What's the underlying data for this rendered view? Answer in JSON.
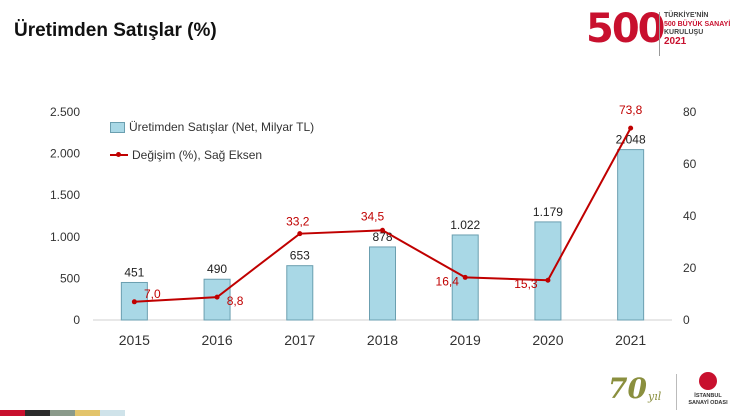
{
  "header": {
    "title": "Üretimden Satışlar (%)"
  },
  "logo_500": {
    "number": "500",
    "line1": "TÜRKİYE'NİN",
    "line2": "500 BÜYÜK SANAYİ",
    "line3": "KURULUŞU",
    "year": "2021"
  },
  "logo_70": {
    "number": "70",
    "suffix": "yıl"
  },
  "iso_logo": {
    "line1": "İSTANBUL",
    "line2": "SANAYİ ODASI"
  },
  "colors": {
    "bar": "#a9d8e6",
    "bar_border": "#6b9fb0",
    "line": "#c00000",
    "brand": "#c8102e"
  },
  "chart_data": {
    "type": "bar",
    "categories": [
      "2015",
      "2016",
      "2017",
      "2018",
      "2019",
      "2020",
      "2021"
    ],
    "series": [
      {
        "name": "Üretimden Satışlar (Net, Milyar TL)",
        "kind": "bar",
        "axis": "left",
        "values": [
          451,
          490,
          653,
          878,
          1022,
          1179,
          2048
        ],
        "labels": [
          "451",
          "490",
          "653",
          "878",
          "1.022",
          "1.179",
          "2.048"
        ]
      },
      {
        "name": "Değişim (%), Sağ Eksen",
        "kind": "line",
        "axis": "right",
        "values": [
          7.0,
          8.8,
          33.2,
          34.5,
          16.4,
          15.3,
          73.8
        ],
        "labels": [
          "7,0",
          "8,8",
          "33,2",
          "34,5",
          "16,4",
          "15,3",
          "73,8"
        ]
      }
    ],
    "left_axis": {
      "ylim": [
        0,
        2500
      ],
      "ticks": [
        0,
        500,
        1000,
        1500,
        2000,
        2500
      ],
      "tick_labels": [
        "0",
        "500",
        "1.000",
        "1.500",
        "2.000",
        "2.500"
      ]
    },
    "right_axis": {
      "ylim": [
        0,
        80
      ],
      "ticks": [
        0,
        20,
        40,
        60,
        80
      ],
      "tick_labels": [
        "0",
        "20",
        "40",
        "60",
        "80"
      ]
    },
    "legend": "top-left",
    "grid": false
  },
  "bottom_stripe_colors": [
    "#c8102e",
    "#2b2b2b",
    "#8a9a8a",
    "#e3c46a",
    "#cfe3ea"
  ]
}
